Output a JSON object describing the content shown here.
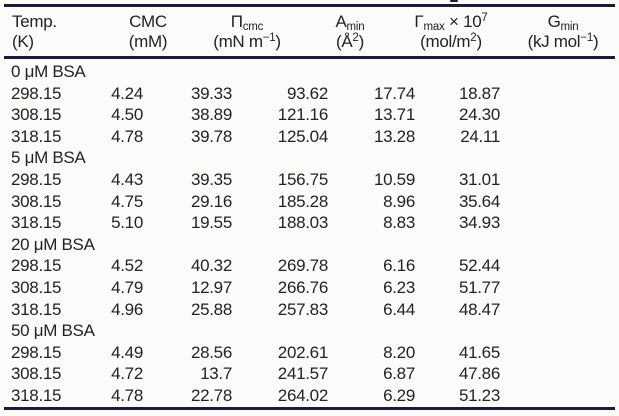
{
  "page": {
    "background_color": "#fbfbf9",
    "text_color": "#232327",
    "rule_color": "#1c1c38"
  },
  "table": {
    "headers": {
      "temp": {
        "l1": "Temp.",
        "l2": "(K)"
      },
      "cmc": {
        "l1": "CMC",
        "l2": "(mM)"
      },
      "pi": {
        "sym": "Π",
        "sub": "cmc",
        "u1": "(mN m",
        "usup": "−1",
        "u2": ")"
      },
      "amin": {
        "sym": "A",
        "sub": "min",
        "u1": "(Å",
        "usup": "2",
        "u2": ")"
      },
      "gamma": {
        "sym": "Γ",
        "sub": "max",
        "mul": " × 10",
        "sup": "7",
        "u1": "(mol/m",
        "usup": "2",
        "u2": ")"
      },
      "gmin": {
        "sym": "G",
        "sub": "min",
        "u1": "(kJ mol",
        "usup": "−1",
        "u2": ")"
      }
    },
    "groups": [
      {
        "label": "0 μM BSA",
        "rows": [
          [
            "298.15",
            "4.24",
            "39.33",
            "93.62",
            "17.74",
            "18.87"
          ],
          [
            "308.15",
            "4.50",
            "38.89",
            "121.16",
            "13.71",
            "24.30"
          ],
          [
            "318.15",
            "4.78",
            "39.78",
            "125.04",
            "13.28",
            "24.11"
          ]
        ]
      },
      {
        "label": "5 μM BSA",
        "rows": [
          [
            "298.15",
            "4.43",
            "39.35",
            "156.75",
            "10.59",
            "31.01"
          ],
          [
            "308.15",
            "4.75",
            "29.16",
            "185.28",
            "8.96",
            "35.64"
          ],
          [
            "318.15",
            "5.10",
            "19.55",
            "188.03",
            "8.83",
            "34.93"
          ]
        ]
      },
      {
        "label": "20 μM BSA",
        "rows": [
          [
            "298.15",
            "4.52",
            "40.32",
            "269.78",
            "6.16",
            "52.44"
          ],
          [
            "308.15",
            "4.79",
            "12.97",
            "266.76",
            "6.23",
            "51.77"
          ],
          [
            "318.15",
            "4.96",
            "25.88",
            "257.83",
            "6.44",
            "48.47"
          ]
        ]
      },
      {
        "label": "50 μM BSA",
        "rows": [
          [
            "298.15",
            "4.49",
            "28.56",
            "202.61",
            "8.20",
            "41.65"
          ],
          [
            "308.15",
            "4.72",
            "13.7",
            "241.57",
            "6.87",
            "47.86"
          ],
          [
            "318.15",
            "4.78",
            "22.78",
            "264.02",
            "6.29",
            "51.23"
          ]
        ]
      }
    ]
  }
}
